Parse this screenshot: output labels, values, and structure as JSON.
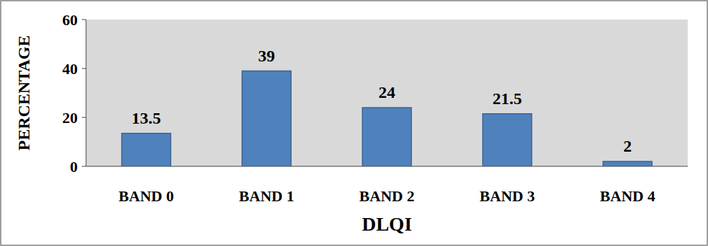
{
  "chart_data": {
    "type": "bar",
    "x_label": "DLQI",
    "y_label": "PERCENTAGE",
    "categories": [
      "BAND 0",
      "BAND 1",
      "BAND 2",
      "BAND 3",
      "BAND 4"
    ],
    "values": [
      13.5,
      39,
      24,
      21.5,
      2
    ],
    "color": "#4f81bd",
    "ylim": [
      0,
      60
    ],
    "yticks": [
      0,
      20,
      40,
      60
    ],
    "grid": false,
    "data_labels": true
  }
}
